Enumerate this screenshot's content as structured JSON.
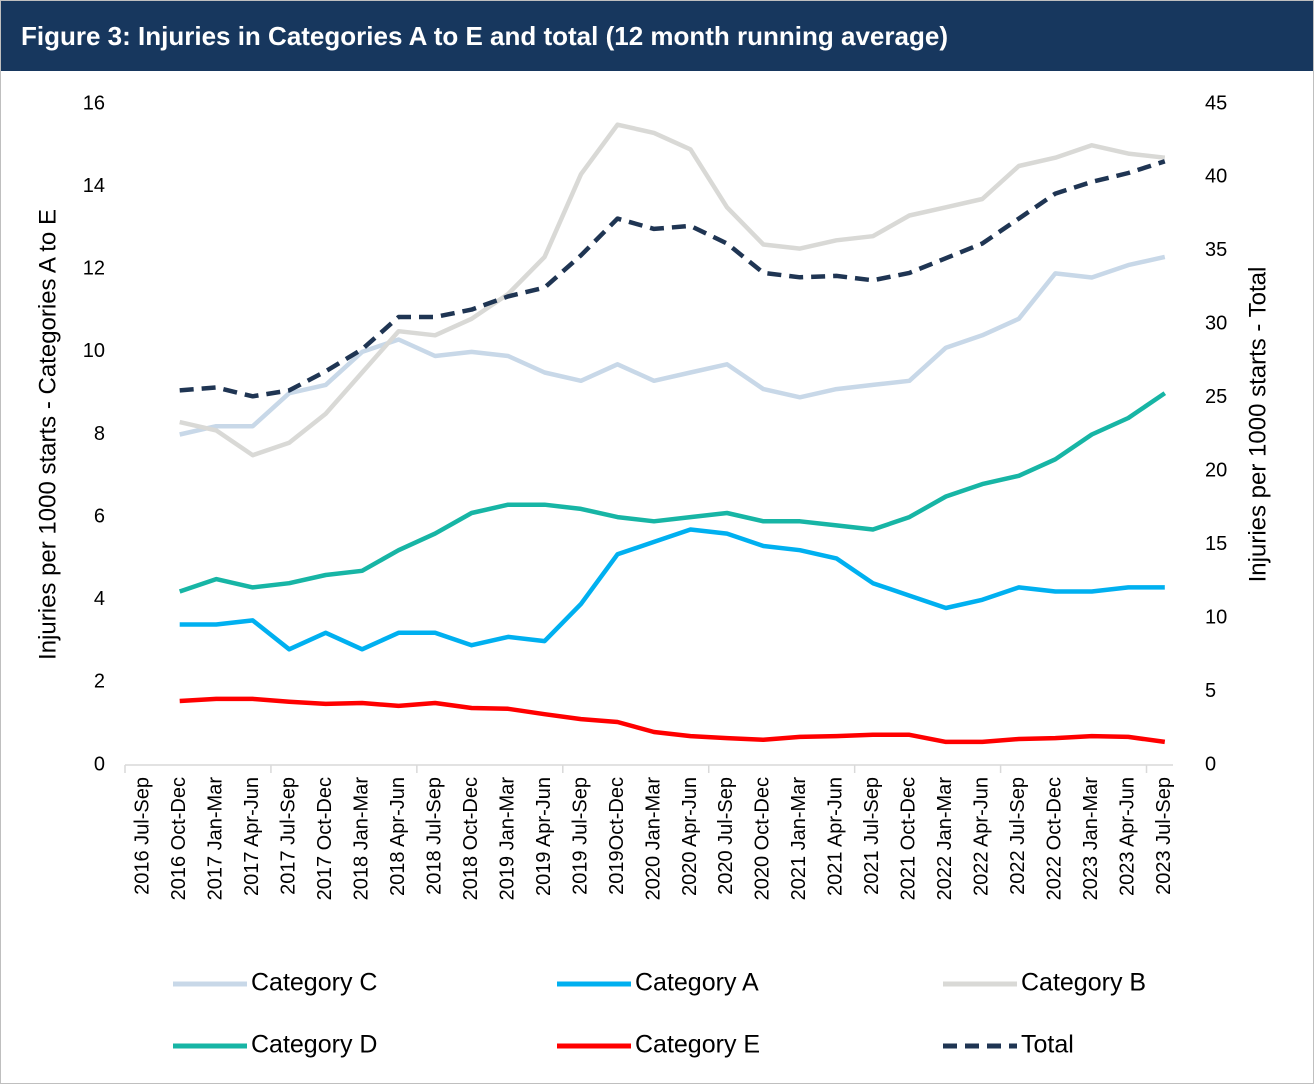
{
  "chart_data": {
    "type": "line",
    "title": "Figure 3: Injuries in Categories A to E and total (12 month running average)",
    "ylabel": "Injuries per 1000 starts - Categories A to E",
    "y2label": "Injuries per 1000 starts - Total",
    "categories": [
      "2016 Jul-Sep",
      "2016 Oct-Dec",
      "2017 Jan-Mar",
      "2017 Apr-Jun",
      "2017 Jul-Sep",
      "2017 Oct-Dec",
      "2018 Jan-Mar",
      "2018 Apr-Jun",
      "2018 Jul-Sep",
      "2018 Oct-Dec",
      "2019 Jan-Mar",
      "2019 Apr-Jun",
      "2019 Jul-Sep",
      "2019Oct-Dec",
      "2020 Jan-Mar",
      "2020 Apr-Jun",
      "2020 Jul-Sep",
      "2020 Oct-Dec",
      "2021 Jan-Mar",
      "2021 Apr-Jun",
      "2021 Jul-Sep",
      "2021 Oct-Dec",
      "2022 Jan-Mar",
      "2022 Apr-Jun",
      "2022 Jul-Sep",
      "2022 Oct-Dec",
      "2023 Jan-Mar",
      "2023 Apr-Jun",
      "2023 Jul-Sep"
    ],
    "ylim": [
      0,
      16
    ],
    "yticks": [
      0,
      2,
      4,
      6,
      8,
      10,
      12,
      14,
      16
    ],
    "y2lim": [
      0,
      45
    ],
    "y2ticks": [
      0,
      5,
      10,
      15,
      20,
      25,
      30,
      35,
      40,
      45
    ],
    "series": [
      {
        "name": "Category C",
        "color": "#c8d8e8",
        "values": [
          null,
          8.0,
          8.2,
          8.2,
          9.0,
          9.2,
          10.0,
          10.3,
          9.9,
          10.0,
          9.9,
          9.5,
          9.3,
          9.7,
          9.3,
          9.5,
          9.7,
          9.1,
          8.9,
          9.1,
          9.2,
          9.3,
          10.1,
          10.4,
          10.8,
          11.9,
          11.8,
          12.1,
          12.3
        ]
      },
      {
        "name": "Category A",
        "color": "#00b0f0",
        "values": [
          null,
          3.4,
          3.4,
          3.5,
          2.8,
          3.2,
          2.8,
          3.2,
          3.2,
          2.9,
          3.1,
          3.0,
          3.9,
          5.1,
          5.4,
          5.7,
          5.6,
          5.3,
          5.2,
          5.0,
          4.4,
          4.1,
          3.8,
          4.0,
          4.3,
          4.2,
          4.2,
          4.3,
          4.3
        ]
      },
      {
        "name": "Category B",
        "color": "#d9d9d6",
        "values": [
          null,
          8.3,
          8.1,
          7.5,
          7.8,
          8.5,
          9.5,
          10.5,
          10.4,
          10.8,
          11.4,
          12.3,
          14.3,
          15.5,
          15.3,
          14.9,
          13.5,
          12.6,
          12.5,
          12.7,
          12.8,
          13.3,
          13.5,
          13.7,
          14.5,
          14.7,
          15.0,
          14.8,
          14.7
        ]
      },
      {
        "name": "Category D",
        "color": "#17b5a5",
        "values": [
          null,
          4.2,
          4.5,
          4.3,
          4.4,
          4.6,
          4.7,
          5.2,
          5.6,
          6.1,
          6.3,
          6.3,
          6.2,
          6.0,
          5.9,
          6.0,
          6.1,
          5.9,
          5.9,
          5.8,
          5.7,
          6.0,
          6.5,
          6.8,
          7.0,
          7.4,
          8.0,
          8.4,
          9.0
        ]
      },
      {
        "name": "Category E",
        "color": "#ff0000",
        "values": [
          null,
          1.55,
          1.6,
          1.6,
          1.53,
          1.48,
          1.5,
          1.43,
          1.5,
          1.38,
          1.36,
          1.23,
          1.11,
          1.04,
          0.8,
          0.7,
          0.65,
          0.61,
          0.68,
          0.7,
          0.73,
          0.73,
          0.56,
          0.56,
          0.63,
          0.65,
          0.7,
          0.68,
          0.56
        ]
      },
      {
        "name": "Total",
        "color": "#1f3553",
        "axis": "y2",
        "dashed": true,
        "values": [
          null,
          25.5,
          25.7,
          25.1,
          25.5,
          26.8,
          28.3,
          30.5,
          30.5,
          31.0,
          31.9,
          32.5,
          34.7,
          37.2,
          36.5,
          36.7,
          35.5,
          33.5,
          33.2,
          33.3,
          33.0,
          33.5,
          34.5,
          35.5,
          37.2,
          38.9,
          39.7,
          40.3,
          41.1
        ]
      }
    ]
  }
}
